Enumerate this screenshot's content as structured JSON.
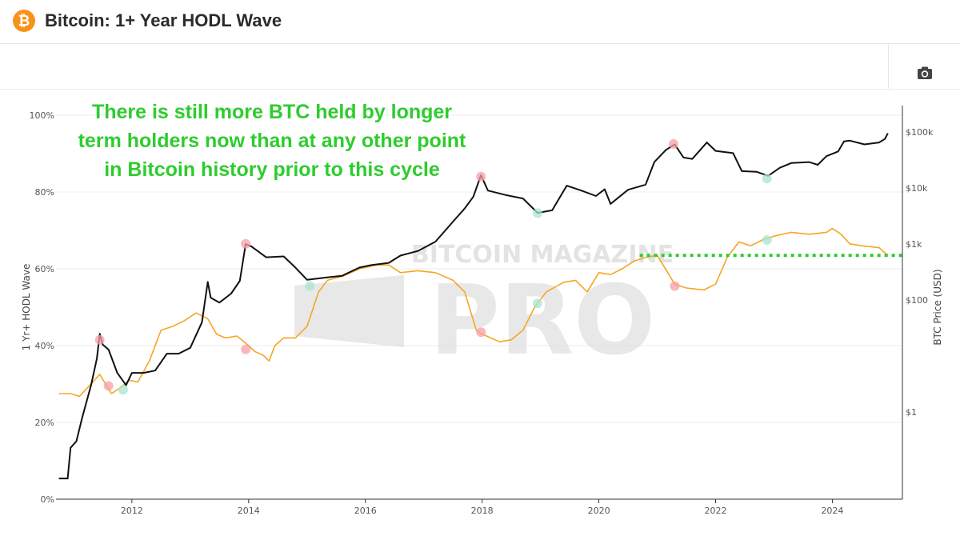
{
  "header": {
    "title": "Bitcoin: 1+ Year HODL Wave",
    "logo_glyph": "₿",
    "accent_color": "#f7931a"
  },
  "toolbar": {
    "camera_icon": "camera-icon"
  },
  "annotation": {
    "lines": [
      "There is still more BTC held by longer",
      "term holders now than at any other point",
      "in Bitcoin history prior to this cycle"
    ],
    "color": "#2ecc2e"
  },
  "watermark": {
    "line1": "BITCOIN MAGAZINE",
    "line2": "PRO"
  },
  "chart_data": {
    "type": "line",
    "ylabel": "1 Yr+ HODL Wave",
    "y2label": "BTC Price (USD)",
    "y_ticks": [
      "0%",
      "20%",
      "40%",
      "60%",
      "80%",
      "100%"
    ],
    "y_range": [
      0,
      100
    ],
    "y2_ticks": [
      "$1",
      "$100",
      "$1k",
      "$10k",
      "$100k"
    ],
    "y2_scale": "log",
    "x_ticks": [
      "2012",
      "2014",
      "2016",
      "2018",
      "2020",
      "2022",
      "2024"
    ],
    "x_range": [
      2010.7,
      2025.2
    ],
    "grid": true,
    "reference_line": {
      "value": 63.5,
      "from": 2020.7,
      "to": 2025.2,
      "color": "#2ecc2e",
      "style": "dotted"
    },
    "series": [
      {
        "key": "hodl",
        "axis": "left",
        "color": "#f5a623",
        "points": [
          [
            2010.75,
            27.5
          ],
          [
            2010.95,
            27.5
          ],
          [
            2011.1,
            26.8
          ],
          [
            2011.3,
            30
          ],
          [
            2011.45,
            32.5
          ],
          [
            2011.55,
            30
          ],
          [
            2011.65,
            27.5
          ],
          [
            2011.8,
            29
          ],
          [
            2011.95,
            31
          ],
          [
            2012.1,
            30.5
          ],
          [
            2012.3,
            36
          ],
          [
            2012.5,
            44
          ],
          [
            2012.7,
            45
          ],
          [
            2012.9,
            46.5
          ],
          [
            2013.1,
            48.5
          ],
          [
            2013.3,
            47
          ],
          [
            2013.45,
            43
          ],
          [
            2013.6,
            42
          ],
          [
            2013.8,
            42.5
          ],
          [
            2014.0,
            40
          ],
          [
            2014.1,
            38.5
          ],
          [
            2014.25,
            37.5
          ],
          [
            2014.35,
            36
          ],
          [
            2014.45,
            40
          ],
          [
            2014.6,
            42
          ],
          [
            2014.8,
            42
          ],
          [
            2015.0,
            45
          ],
          [
            2015.2,
            54
          ],
          [
            2015.35,
            57
          ],
          [
            2015.6,
            58
          ],
          [
            2015.9,
            60
          ],
          [
            2016.2,
            61
          ],
          [
            2016.4,
            61
          ],
          [
            2016.6,
            59
          ],
          [
            2016.9,
            59.5
          ],
          [
            2017.2,
            59
          ],
          [
            2017.5,
            57
          ],
          [
            2017.7,
            54
          ],
          [
            2017.9,
            44
          ],
          [
            2018.0,
            43
          ],
          [
            2018.3,
            41
          ],
          [
            2018.5,
            41.5
          ],
          [
            2018.7,
            44
          ],
          [
            2018.9,
            50
          ],
          [
            2019.1,
            54
          ],
          [
            2019.4,
            56.5
          ],
          [
            2019.6,
            57
          ],
          [
            2019.8,
            54
          ],
          [
            2020.0,
            59
          ],
          [
            2020.2,
            58.5
          ],
          [
            2020.4,
            60
          ],
          [
            2020.6,
            62
          ],
          [
            2020.8,
            63
          ],
          [
            2021.0,
            63.5
          ],
          [
            2021.1,
            61
          ],
          [
            2021.3,
            56
          ],
          [
            2021.5,
            55
          ],
          [
            2021.8,
            54.5
          ],
          [
            2022.0,
            56
          ],
          [
            2022.2,
            63
          ],
          [
            2022.4,
            67
          ],
          [
            2022.6,
            66
          ],
          [
            2022.8,
            67.5
          ],
          [
            2023.0,
            68.5
          ],
          [
            2023.3,
            69.5
          ],
          [
            2023.6,
            69
          ],
          [
            2023.9,
            69.5
          ],
          [
            2024.0,
            70.5
          ],
          [
            2024.15,
            69
          ],
          [
            2024.3,
            66.5
          ],
          [
            2024.5,
            66
          ],
          [
            2024.8,
            65.5
          ],
          [
            2024.95,
            63.5
          ]
        ]
      },
      {
        "key": "price",
        "axis": "right",
        "color": "#111111",
        "points": [
          [
            2010.75,
            0.065
          ],
          [
            2010.9,
            0.065
          ],
          [
            2010.95,
            0.23
          ],
          [
            2011.05,
            0.3
          ],
          [
            2011.15,
            0.8
          ],
          [
            2011.3,
            3
          ],
          [
            2011.4,
            9
          ],
          [
            2011.45,
            25
          ],
          [
            2011.5,
            16
          ],
          [
            2011.6,
            13
          ],
          [
            2011.75,
            5
          ],
          [
            2011.9,
            3
          ],
          [
            2012.0,
            5
          ],
          [
            2012.2,
            5
          ],
          [
            2012.4,
            5.5
          ],
          [
            2012.6,
            11
          ],
          [
            2012.8,
            11
          ],
          [
            2013.0,
            14
          ],
          [
            2013.2,
            40
          ],
          [
            2013.3,
            210
          ],
          [
            2013.35,
            110
          ],
          [
            2013.5,
            90
          ],
          [
            2013.7,
            130
          ],
          [
            2013.85,
            220
          ],
          [
            2013.95,
            1000
          ],
          [
            2014.05,
            900
          ],
          [
            2014.3,
            580
          ],
          [
            2014.6,
            600
          ],
          [
            2014.8,
            380
          ],
          [
            2015.0,
            230
          ],
          [
            2015.3,
            250
          ],
          [
            2015.6,
            270
          ],
          [
            2015.9,
            380
          ],
          [
            2016.1,
            420
          ],
          [
            2016.4,
            460
          ],
          [
            2016.6,
            620
          ],
          [
            2016.9,
            750
          ],
          [
            2017.2,
            1100
          ],
          [
            2017.5,
            2500
          ],
          [
            2017.7,
            4300
          ],
          [
            2017.85,
            7000
          ],
          [
            2017.98,
            17000
          ],
          [
            2018.1,
            9000
          ],
          [
            2018.4,
            7500
          ],
          [
            2018.7,
            6500
          ],
          [
            2018.95,
            3600
          ],
          [
            2019.2,
            4000
          ],
          [
            2019.45,
            11000
          ],
          [
            2019.7,
            9000
          ],
          [
            2019.95,
            7200
          ],
          [
            2020.1,
            9500
          ],
          [
            2020.2,
            5200
          ],
          [
            2020.5,
            9300
          ],
          [
            2020.8,
            11500
          ],
          [
            2020.95,
            29000
          ],
          [
            2021.15,
            48000
          ],
          [
            2021.3,
            60000
          ],
          [
            2021.45,
            35000
          ],
          [
            2021.6,
            33000
          ],
          [
            2021.85,
            65000
          ],
          [
            2022.0,
            46000
          ],
          [
            2022.3,
            42000
          ],
          [
            2022.45,
            20000
          ],
          [
            2022.7,
            19500
          ],
          [
            2022.9,
            16500
          ],
          [
            2023.1,
            23000
          ],
          [
            2023.3,
            28000
          ],
          [
            2023.6,
            29000
          ],
          [
            2023.75,
            26000
          ],
          [
            2023.9,
            37000
          ],
          [
            2024.1,
            45000
          ],
          [
            2024.2,
            68000
          ],
          [
            2024.3,
            70000
          ],
          [
            2024.55,
            60000
          ],
          [
            2024.8,
            65000
          ],
          [
            2024.9,
            75000
          ],
          [
            2024.95,
            95000
          ]
        ]
      }
    ],
    "markers": [
      {
        "x": 2011.45,
        "y": 41.5,
        "type": "top"
      },
      {
        "x": 2011.6,
        "y": 29.5,
        "type": "top"
      },
      {
        "x": 2011.85,
        "y": 28.5,
        "type": "bottom"
      },
      {
        "x": 2013.95,
        "y": 66.5,
        "type": "top"
      },
      {
        "x": 2013.95,
        "y": 39,
        "type": "top"
      },
      {
        "x": 2015.05,
        "y": 55.5,
        "type": "bottom"
      },
      {
        "x": 2017.98,
        "y": 84,
        "type": "top"
      },
      {
        "x": 2017.98,
        "y": 43.5,
        "type": "top"
      },
      {
        "x": 2018.95,
        "y": 74.5,
        "type": "bottom"
      },
      {
        "x": 2018.95,
        "y": 51,
        "type": "bottom"
      },
      {
        "x": 2021.28,
        "y": 92.5,
        "type": "top"
      },
      {
        "x": 2021.3,
        "y": 55.5,
        "type": "top"
      },
      {
        "x": 2022.88,
        "y": 83.5,
        "type": "bottom"
      },
      {
        "x": 2022.88,
        "y": 67.5,
        "type": "bottom"
      }
    ]
  }
}
